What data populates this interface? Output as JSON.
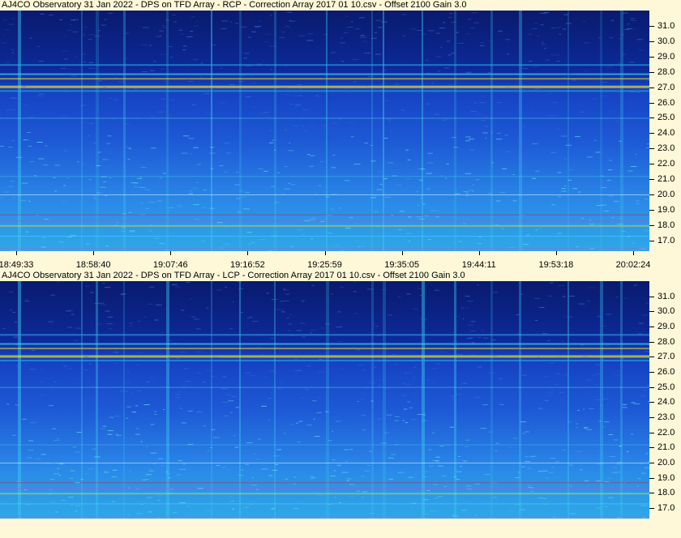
{
  "panels": [
    {
      "title": "AJ4CO Observatory 31 Jan 2022  -  DPS on TFD Array  -  RCP  -  Correction Array 2017 01 10.csv  -  Offset 2100  Gain 3.0",
      "polarization": "RCP"
    },
    {
      "title": "AJ4CO Observatory 31 Jan 2022  -  DPS on TFD Array  -  LCP  -  Correction Array 2017 01 10.csv  -  Offset 2100  Gain 3.0",
      "polarization": "LCP"
    }
  ],
  "frequency_axis": {
    "unit": "MHz",
    "min": 16.3,
    "max": 32.0,
    "ticks": [
      "31.0",
      "30.0",
      "29.0",
      "28.0",
      "27.0",
      "26.0",
      "25.0",
      "24.0",
      "23.0",
      "22.0",
      "21.0",
      "20.0",
      "19.0",
      "18.0",
      "17.0"
    ]
  },
  "time_axis": {
    "ticks": [
      "18:49:33",
      "18:58:40",
      "19:07:46",
      "19:16:52",
      "19:25:59",
      "19:35:05",
      "19:44:11",
      "19:53:18",
      "20:02:24"
    ]
  },
  "colors": {
    "background": "#fff8d8",
    "spectrogram_dark": "#0a1a6e",
    "spectrogram_mid": "#1e5ad6",
    "spectrogram_light": "#2fa8e8",
    "highlight_yellow": "#e8e020",
    "highlight_red": "#d02020",
    "highlight_magenta": "#e040c0"
  }
}
